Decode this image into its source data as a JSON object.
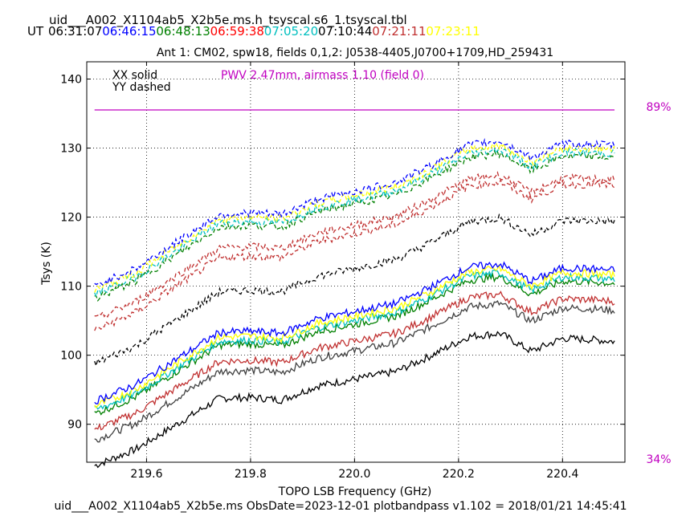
{
  "header": {
    "file_title": "uid___A002_X1104ab5_X2b5e.ms.h_tsyscal.s6_1.tsyscal.tbl",
    "ut_label": "UT",
    "times": [
      {
        "text": "06:31:07",
        "color": "#000000"
      },
      {
        "text": "06:46:15",
        "color": "#0000ff"
      },
      {
        "text": "06:48:13",
        "color": "#008000"
      },
      {
        "text": "06:59:38",
        "color": "#ff0000"
      },
      {
        "text": "07:05:20",
        "color": "#00bfbf"
      },
      {
        "text": "07:10:44",
        "color": "#000000"
      },
      {
        "text": "07:21:11",
        "color": "#c03030"
      },
      {
        "text": "07:23:11",
        "color": "#ffff00"
      }
    ],
    "subtitle": "Ant 1: CM02,  spw18,  fields 0,1,2: J0538-4405,J0700+1709,HD_259431"
  },
  "footer": {
    "text": "uid___A002_X1104ab5_X2b5e.ms  ObsDate=2023-12-01   plotbandpass v1.102 = 2018/01/21 14:45:41"
  },
  "chart_data": {
    "type": "line",
    "xlabel": "TOPO LSB Frequency (GHz)",
    "ylabel": "Tsys (K)",
    "xlim": [
      219.485,
      220.52
    ],
    "ylim": [
      84.5,
      142.5
    ],
    "xticks": [
      219.6,
      219.8,
      220.0,
      220.2,
      220.4
    ],
    "xtick_labels": [
      "219.6",
      "219.8",
      "220.0",
      "220.2",
      "220.4"
    ],
    "yticks": [
      90,
      100,
      110,
      120,
      130,
      140
    ],
    "ytick_labels": [
      "90",
      "100",
      "110",
      "120",
      "130",
      "140"
    ],
    "grid": true,
    "legend": [
      {
        "text": "XX solid",
        "position": "top-left"
      },
      {
        "text": "YY dashed",
        "position": "top-left"
      }
    ],
    "annotation": {
      "text": "PWV 2.47mm, airmass 1.10 (field 0)",
      "color": "#c000c0"
    },
    "transmission": {
      "color": "#c000c0",
      "value_percent": 89,
      "axis_top_label": "89%",
      "axis_bottom_label": "34%",
      "axis_top_value": 89,
      "axis_bottom_value": 34
    },
    "x_range": [
      219.5,
      220.5
    ],
    "series": [
      {
        "color": "#000000",
        "style": "solid",
        "start": 84.0,
        "end": 102.0
      },
      {
        "color": "#404040",
        "style": "solid",
        "start": 87.7,
        "end": 106.5
      },
      {
        "color": "#c03030",
        "style": "solid",
        "start": 89.2,
        "end": 107.8
      },
      {
        "color": "#008000",
        "style": "solid",
        "start": 91.5,
        "end": 110.4
      },
      {
        "color": "#00bfbf",
        "style": "solid",
        "start": 92.0,
        "end": 111.0
      },
      {
        "color": "#ffff00",
        "style": "solid",
        "start": 92.6,
        "end": 111.6
      },
      {
        "color": "#0000ff",
        "style": "solid",
        "start": 93.3,
        "end": 112.3
      },
      {
        "color": "#000000",
        "style": "dashed",
        "start": 98.8,
        "end": 119.3
      },
      {
        "color": "#c03030",
        "style": "dashed",
        "start": 103.6,
        "end": 124.6
      },
      {
        "color": "#c03030",
        "style": "dashed",
        "start": 105.2,
        "end": 125.4
      },
      {
        "color": "#008000",
        "style": "dashed",
        "start": 108.2,
        "end": 128.6
      },
      {
        "color": "#00bfbf",
        "style": "dashed",
        "start": 108.8,
        "end": 129.2
      },
      {
        "color": "#ffff00",
        "style": "dashed",
        "start": 109.4,
        "end": 129.8
      },
      {
        "color": "#0000ff",
        "style": "dashed",
        "start": 110.0,
        "end": 130.4
      }
    ]
  }
}
